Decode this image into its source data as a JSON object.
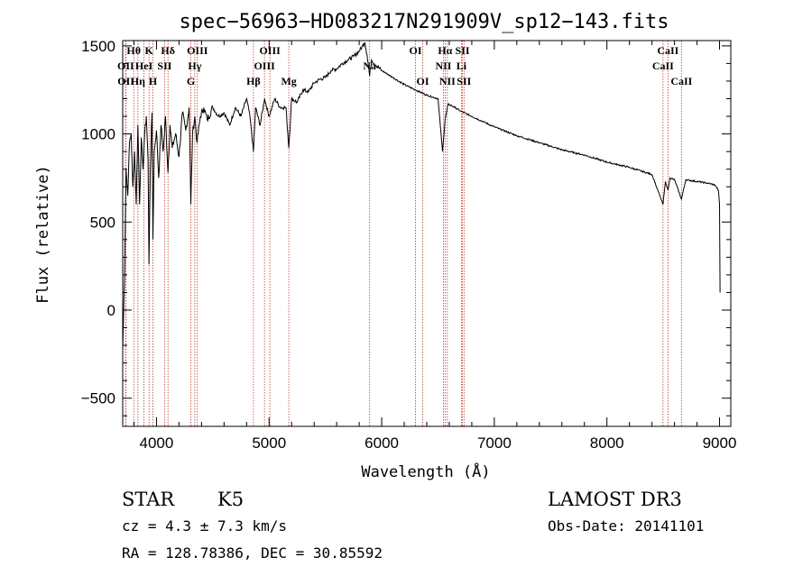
{
  "chart_data": {
    "type": "line",
    "title": "spec−56963−HD083217N291909V_sp12−143.fits",
    "xlabel": "Wavelength (Å)",
    "ylabel": "Flux (relative)",
    "xlim": [
      3700,
      9100
    ],
    "ylim": [
      -660,
      1530
    ],
    "x_ticks": [
      4000,
      5000,
      6000,
      7000,
      8000,
      9000
    ],
    "y_ticks": [
      -500,
      0,
      500,
      1000,
      1500
    ],
    "colors": {
      "spectrum": "#000000",
      "line_marker": "#c0392b",
      "axes": "#000000"
    },
    "spectrum": {
      "x": [
        3700,
        3715,
        3730,
        3745,
        3760,
        3775,
        3790,
        3805,
        3820,
        3835,
        3850,
        3865,
        3880,
        3895,
        3910,
        3925,
        3933,
        3945,
        3960,
        3968,
        3980,
        4000,
        4020,
        4040,
        4060,
        4080,
        4102,
        4120,
        4140,
        4170,
        4200,
        4230,
        4260,
        4290,
        4305,
        4320,
        4340,
        4360,
        4390,
        4420,
        4450,
        4500,
        4550,
        4600,
        4650,
        4700,
        4750,
        4800,
        4830,
        4861,
        4880,
        4920,
        4960,
        5000,
        5050,
        5100,
        5150,
        5175,
        5200,
        5250,
        5300,
        5350,
        5400,
        5450,
        5500,
        5550,
        5600,
        5650,
        5700,
        5750,
        5800,
        5830,
        5850,
        5870,
        5893,
        5910,
        5950,
        6000,
        6100,
        6200,
        6300,
        6400,
        6500,
        6540,
        6563,
        6590,
        6650,
        6700,
        6800,
        6900,
        7000,
        7200,
        7400,
        7600,
        7800,
        8000,
        8200,
        8400,
        8498,
        8520,
        8542,
        8560,
        8600,
        8662,
        8700,
        8800,
        8900,
        8960,
        8990,
        9000,
        9005
      ],
      "y": [
        -230,
        150,
        800,
        650,
        950,
        1000,
        700,
        900,
        600,
        1050,
        600,
        980,
        800,
        1000,
        1100,
        850,
        260,
        800,
        1120,
        400,
        900,
        1020,
        750,
        1050,
        900,
        1100,
        780,
        1050,
        920,
        1000,
        870,
        1120,
        1020,
        1150,
        600,
        1000,
        1100,
        950,
        1100,
        1150,
        1080,
        1150,
        1100,
        1120,
        1050,
        1150,
        1100,
        1200,
        1100,
        900,
        1150,
        1050,
        1200,
        1100,
        1200,
        1150,
        1150,
        920,
        1200,
        1180,
        1250,
        1240,
        1290,
        1310,
        1320,
        1360,
        1370,
        1400,
        1420,
        1440,
        1470,
        1500,
        1520,
        1450,
        1330,
        1420,
        1390,
        1360,
        1320,
        1280,
        1250,
        1220,
        1200,
        900,
        1080,
        1170,
        1150,
        1130,
        1100,
        1070,
        1040,
        990,
        950,
        910,
        880,
        840,
        810,
        770,
        600,
        730,
        680,
        750,
        740,
        630,
        740,
        730,
        720,
        710,
        680,
        600,
        100
      ]
    },
    "line_markers": [
      {
        "name": "Hθ",
        "x": 3798,
        "row": 0
      },
      {
        "name": "OII",
        "x": 3727,
        "row": 1
      },
      {
        "name": "OII",
        "x": 3729,
        "row": 2
      },
      {
        "name": "Hη",
        "x": 3835,
        "row": 2
      },
      {
        "name": "HeI",
        "x": 3889,
        "row": 1
      },
      {
        "name": "K",
        "x": 3934,
        "row": 0
      },
      {
        "name": "H",
        "x": 3969,
        "row": 2
      },
      {
        "name": "SII",
        "x": 4072,
        "row": 1
      },
      {
        "name": "Hδ",
        "x": 4102,
        "row": 0
      },
      {
        "name": "OIII",
        "x": 4363,
        "row": 0
      },
      {
        "name": "Hγ",
        "x": 4340,
        "row": 1
      },
      {
        "name": "G",
        "x": 4305,
        "row": 2
      },
      {
        "name": "Hβ",
        "x": 4861,
        "row": 2
      },
      {
        "name": "OIII",
        "x": 5007,
        "row": 0
      },
      {
        "name": "OIII",
        "x": 4959,
        "row": 1
      },
      {
        "name": "Mg",
        "x": 5175,
        "row": 2
      },
      {
        "name": "Na",
        "x": 5893,
        "row": 1
      },
      {
        "name": "OI",
        "x": 6300,
        "row": 0
      },
      {
        "name": "OI",
        "x": 6364,
        "row": 2
      },
      {
        "name": "Hα",
        "x": 6563,
        "row": 0
      },
      {
        "name": "NII",
        "x": 6548,
        "row": 1
      },
      {
        "name": "NII",
        "x": 6583,
        "row": 2
      },
      {
        "name": "SII",
        "x": 6717,
        "row": 0
      },
      {
        "name": "Li",
        "x": 6708,
        "row": 1
      },
      {
        "name": "SII",
        "x": 6731,
        "row": 2
      },
      {
        "name": "CaII",
        "x": 8542,
        "row": 0
      },
      {
        "name": "CaII",
        "x": 8498,
        "row": 1
      },
      {
        "name": "CaII",
        "x": 8662,
        "row": 2
      }
    ]
  },
  "info": {
    "object_class": "STAR",
    "subclass": "K5",
    "survey": "LAMOST DR3",
    "cz": "cz = 4.3 ± 7.3 km/s",
    "obs_date": "Obs-Date: 20141101",
    "coords": "RA = 128.78386, DEC =  30.85592"
  }
}
